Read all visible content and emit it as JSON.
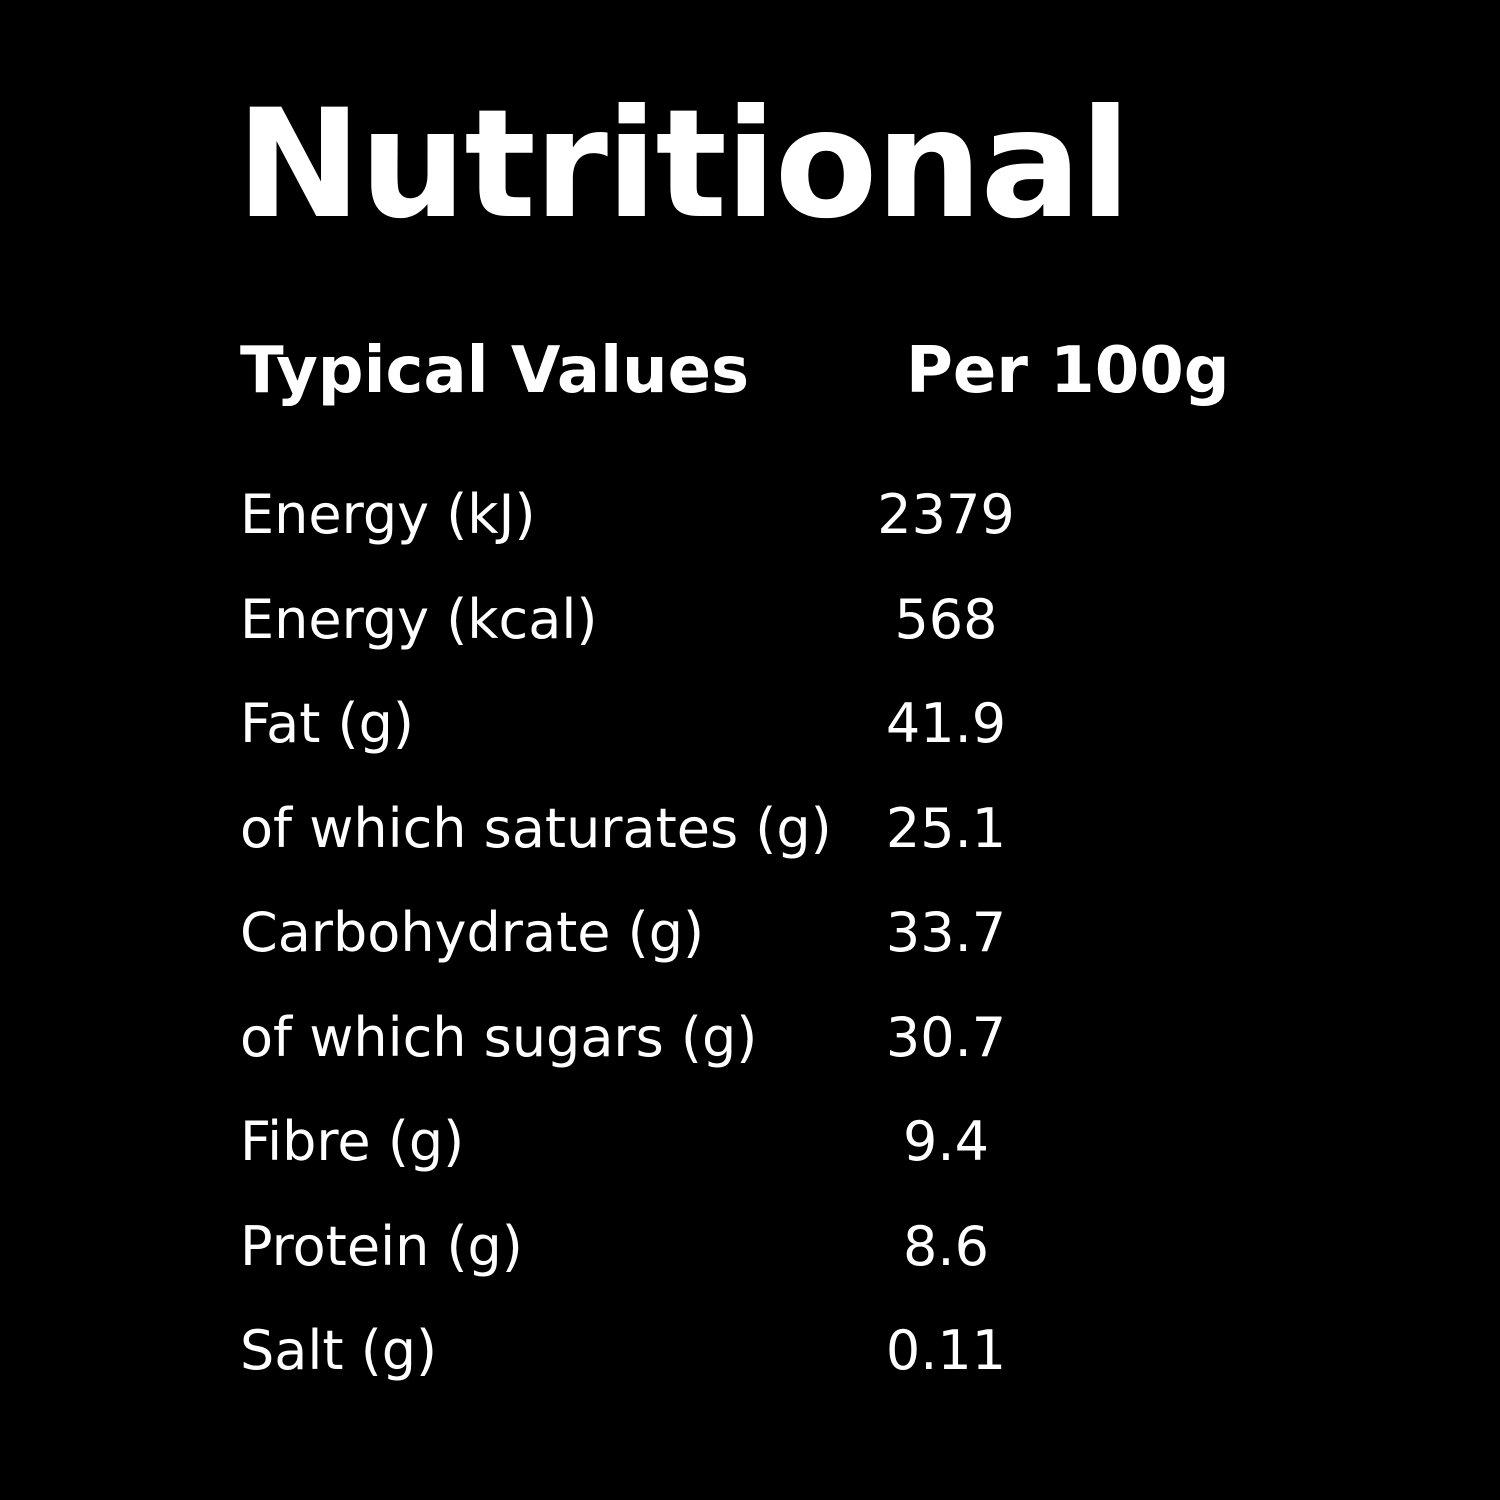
{
  "title": "Nutritional",
  "header": {
    "label": "Typical Values",
    "value": "Per 100g"
  },
  "rows": [
    {
      "label": "Energy (kJ)",
      "value": "2379"
    },
    {
      "label": "Energy (kcal)",
      "value": "568"
    },
    {
      "label": "Fat (g)",
      "value": "41.9"
    },
    {
      "label": "of which saturates (g)",
      "value": "25.1"
    },
    {
      "label": "Carbohydrate (g)",
      "value": "33.7"
    },
    {
      "label": "of which sugars (g)",
      "value": "30.7"
    },
    {
      "label": "Fibre (g)",
      "value": "9.4"
    },
    {
      "label": "Protein (g)",
      "value": "8.6"
    },
    {
      "label": "Salt (g)",
      "value": "0.11"
    }
  ],
  "colors": {
    "background": "#000000",
    "text": "#ffffff"
  }
}
